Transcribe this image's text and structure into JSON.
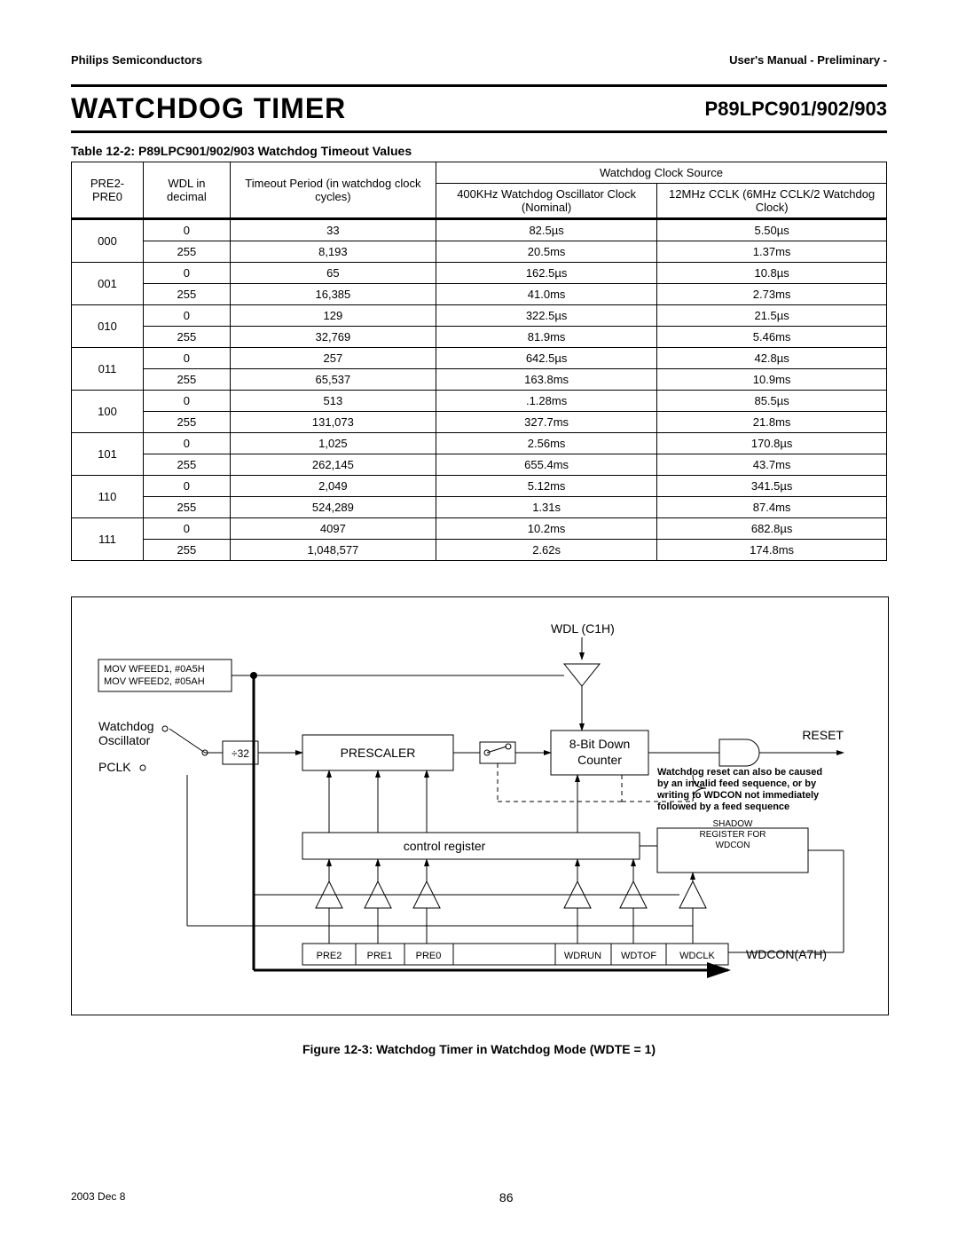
{
  "header": {
    "left": "Philips Semiconductors",
    "right": "User's Manual - Preliminary -"
  },
  "titleBar": {
    "title": "WATCHDOG TIMER",
    "part": "P89LPC901/902/903"
  },
  "table": {
    "caption": "Table 12-2: P89LPC901/902/903 Watchdog Timeout Values",
    "head": {
      "c1": "PRE2-PRE0",
      "c2": "WDL in decimal",
      "c3": "Timeout Period (in watchdog clock cycles)",
      "clockSource": "Watchdog Clock Source",
      "c4": "400KHz Watchdog Oscillator Clock (Nominal)",
      "c5": "12MHz CCLK (6MHz CCLK/2 Watchdog Clock)"
    },
    "rows": [
      {
        "pre": "000",
        "a": {
          "wdl": "0",
          "cyc": "33",
          "osc": "82.5µs",
          "cclk": "5.50µs"
        },
        "b": {
          "wdl": "255",
          "cyc": "8,193",
          "osc": "20.5ms",
          "cclk": "1.37ms"
        }
      },
      {
        "pre": "001",
        "a": {
          "wdl": "0",
          "cyc": "65",
          "osc": "162.5µs",
          "cclk": "10.8µs"
        },
        "b": {
          "wdl": "255",
          "cyc": "16,385",
          "osc": "41.0ms",
          "cclk": "2.73ms"
        }
      },
      {
        "pre": "010",
        "a": {
          "wdl": "0",
          "cyc": "129",
          "osc": "322.5µs",
          "cclk": "21.5µs"
        },
        "b": {
          "wdl": "255",
          "cyc": "32,769",
          "osc": "81.9ms",
          "cclk": "5.46ms"
        }
      },
      {
        "pre": "011",
        "a": {
          "wdl": "0",
          "cyc": "257",
          "osc": "642.5µs",
          "cclk": "42.8µs"
        },
        "b": {
          "wdl": "255",
          "cyc": "65,537",
          "osc": "163.8ms",
          "cclk": "10.9ms"
        }
      },
      {
        "pre": "100",
        "a": {
          "wdl": "0",
          "cyc": "513",
          "osc": ".1.28ms",
          "cclk": "85.5µs"
        },
        "b": {
          "wdl": "255",
          "cyc": "131,073",
          "osc": "327.7ms",
          "cclk": "21.8ms"
        }
      },
      {
        "pre": "101",
        "a": {
          "wdl": "0",
          "cyc": "1,025",
          "osc": "2.56ms",
          "cclk": "170.8µs"
        },
        "b": {
          "wdl": "255",
          "cyc": "262,145",
          "osc": "655.4ms",
          "cclk": "43.7ms"
        }
      },
      {
        "pre": "110",
        "a": {
          "wdl": "0",
          "cyc": "2,049",
          "osc": "5.12ms",
          "cclk": "341.5µs"
        },
        "b": {
          "wdl": "255",
          "cyc": "524,289",
          "osc": "1.31s",
          "cclk": "87.4ms"
        }
      },
      {
        "pre": "111",
        "a": {
          "wdl": "0",
          "cyc": "4097",
          "osc": "10.2ms",
          "cclk": "682.8µs"
        },
        "b": {
          "wdl": "255",
          "cyc": "1,048,577",
          "osc": "2.62s",
          "cclk": "174.8ms"
        }
      }
    ]
  },
  "diagram": {
    "wdl": "WDL (C1H)",
    "mov1": "MOV WFEED1, #0A5H",
    "mov2": "MOV WFEED2, #05AH",
    "watchdog": "Watchdog",
    "oscillator": "Oscillator",
    "pclk": "PCLK",
    "div": "÷32",
    "prescaler": "PRESCALER",
    "counter1": "8-Bit Down",
    "counter2": "Counter",
    "reset": "RESET",
    "note1": "Watchdog reset can also be caused",
    "note2": "by an invalid feed sequence, or by",
    "note3": "writing to WDCON not immediately",
    "note4": "followed by a feed sequence",
    "shadow1": "SHADOW",
    "shadow2": "REGISTER FOR",
    "shadow3": "WDCON",
    "control": "control register",
    "pre2": "PRE2",
    "pre1": "PRE1",
    "pre0": "PRE0",
    "wdrun": "WDRUN",
    "wdtof": "WDTOF",
    "wdclk": "WDCLK",
    "wdcon": "WDCON(A7H)"
  },
  "figureCaption": "Figure 12-3: Watchdog Timer in Watchdog Mode (WDTE = 1)",
  "footer": {
    "date": "2003 Dec 8",
    "page": "86"
  }
}
